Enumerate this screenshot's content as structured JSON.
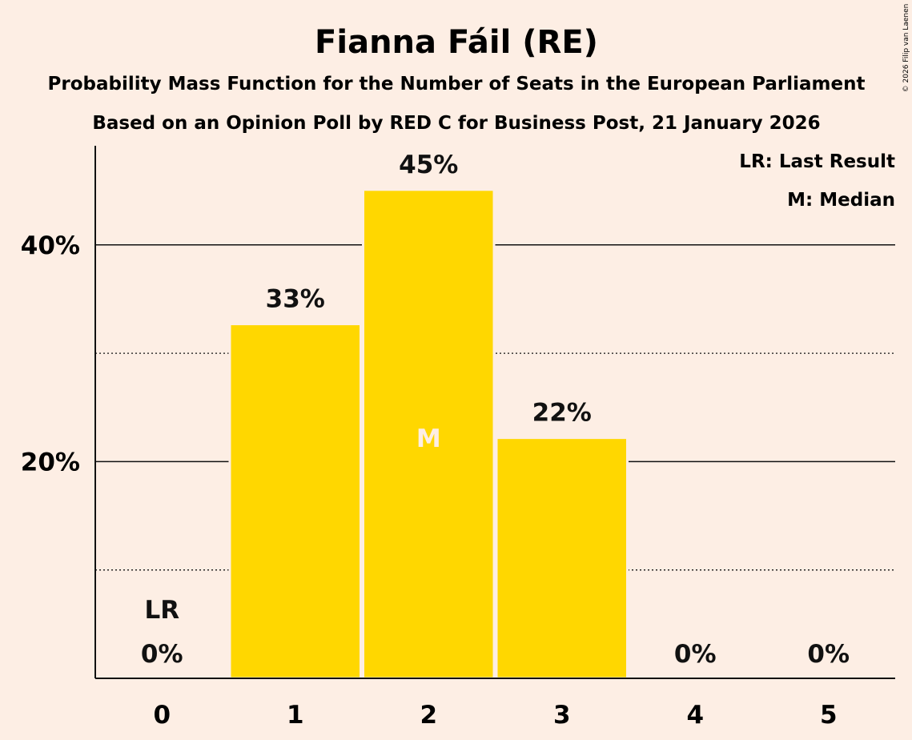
{
  "chart_data": {
    "type": "bar",
    "title": "Fianna Fáil (RE)",
    "subtitle": "Probability Mass Function for the Number of Seats in the European Parliament",
    "subtitle2": "Based on an Opinion Poll by RED C for Business Post, 21 January 2026",
    "categories": [
      "0",
      "1",
      "2",
      "3",
      "4",
      "5"
    ],
    "values": [
      0,
      32.7,
      45.1,
      22.2,
      0,
      0
    ],
    "value_labels": [
      "0%",
      "33%",
      "45%",
      "22%",
      "0%",
      "0%"
    ],
    "ylim": [
      0,
      49
    ],
    "yticks": [
      20,
      40
    ],
    "ytick_labels": [
      "20%",
      "40%"
    ],
    "minor_gridlines": [
      10,
      30
    ],
    "bar_color": "#FFD700",
    "last_result_label": "LR",
    "last_result_index": 0,
    "median_label": "M",
    "median_index": 2,
    "legend": [
      "LR: Last Result",
      "M: Median"
    ],
    "copyright": "© 2026 Filip van Laenen"
  }
}
